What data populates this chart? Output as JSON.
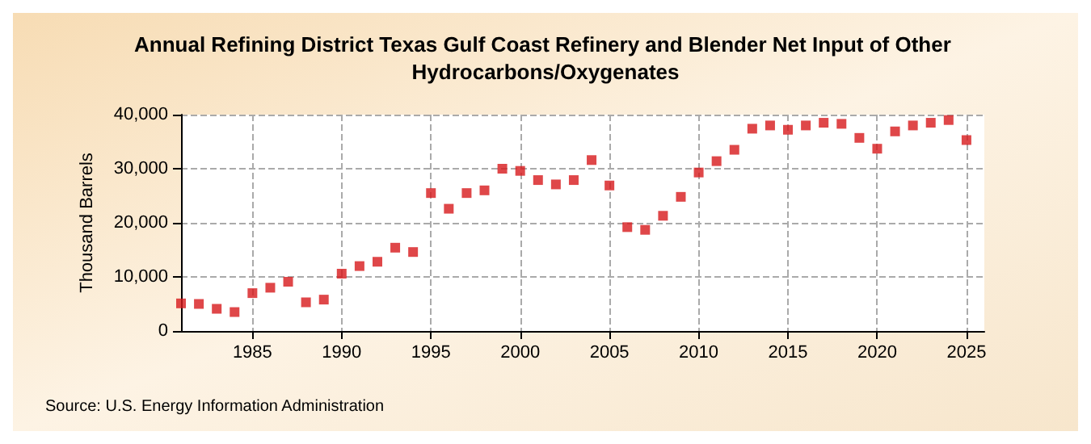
{
  "chart_data": {
    "type": "scatter",
    "title": "Annual Refining District Texas Gulf Coast Refinery and Blender Net Input of Other Hydrocarbons/Oxygenates",
    "ylabel": "Thousand Barrels",
    "annotations": [
      "Source: U.S. Energy Information Administration"
    ],
    "x": [
      1981,
      1982,
      1983,
      1984,
      1985,
      1986,
      1987,
      1988,
      1989,
      1990,
      1991,
      1992,
      1993,
      1994,
      1995,
      1996,
      1997,
      1998,
      1999,
      2000,
      2001,
      2002,
      2003,
      2004,
      2005,
      2006,
      2007,
      2008,
      2009,
      2010,
      2011,
      2012,
      2013,
      2014,
      2015,
      2016,
      2017,
      2018,
      2019,
      2020,
      2021,
      2022,
      2023,
      2024,
      2025
    ],
    "series": [
      {
        "color": "#d7191c",
        "values": [
          5100,
          5000,
          4100,
          3500,
          7000,
          8000,
          9100,
          5300,
          5800,
          10600,
          12000,
          12800,
          15400,
          14600,
          25500,
          22600,
          25500,
          26000,
          30000,
          29600,
          27900,
          27100,
          27900,
          31600,
          26900,
          19200,
          18700,
          21300,
          24800,
          29300,
          31400,
          33500,
          37400,
          38000,
          37200,
          38000,
          38500,
          38300,
          35700,
          33700,
          36900,
          38000,
          38500,
          39000,
          35300
        ]
      }
    ],
    "xlim": [
      1981,
      2026
    ],
    "xticks": [
      1985,
      1990,
      1995,
      2000,
      2005,
      2010,
      2015,
      2020,
      2025
    ],
    "ylim": [
      0,
      40000
    ],
    "yticks": [
      0,
      {
        "value": 10000,
        "label": "10,000"
      },
      {
        "value": 20000,
        "label": "20,000"
      },
      {
        "value": 30000,
        "label": "30,000"
      },
      {
        "value": 40000,
        "label": "40,000"
      }
    ],
    "grid": true,
    "marker": "square"
  }
}
